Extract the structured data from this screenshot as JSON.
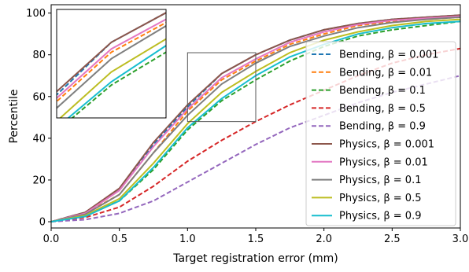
{
  "chart_data": {
    "type": "line",
    "xlabel": "Target registration error (mm)",
    "ylabel": "Percentile",
    "xlim": [
      0,
      3
    ],
    "ylim": [
      -3,
      104
    ],
    "xticks": [
      "0.0",
      "0.5",
      "1.0",
      "1.5",
      "2.0",
      "2.5",
      "3.0"
    ],
    "yticks": [
      "0",
      "20",
      "40",
      "60",
      "80",
      "100"
    ],
    "grid": false,
    "legend_position": "right",
    "inset": {
      "xlim": [
        1.0,
        1.5
      ],
      "ylim": [
        48,
        81
      ]
    },
    "x": [
      0,
      0.25,
      0.5,
      0.75,
      1.0,
      1.25,
      1.5,
      1.75,
      2.0,
      2.25,
      2.5,
      2.75,
      3.0
    ],
    "series": [
      {
        "name": "Bending, β = 0.001",
        "color": "#1f77b4",
        "dash": true,
        "values": [
          0,
          4.5,
          15,
          37,
          55,
          71,
          80,
          87,
          92,
          95,
          97,
          98,
          99
        ]
      },
      {
        "name": "Bending, β = 0.01",
        "color": "#ff7f0e",
        "dash": true,
        "values": [
          0,
          4,
          13,
          33,
          53,
          68,
          77,
          85,
          90,
          94,
          96,
          97,
          98
        ]
      },
      {
        "name": "Bending, β = 0.1",
        "color": "#2ca02c",
        "dash": true,
        "values": [
          0,
          3,
          10,
          25,
          44,
          58,
          68,
          77,
          84,
          89,
          92,
          94,
          96
        ]
      },
      {
        "name": "Bending, β = 0.5",
        "color": "#d62728",
        "dash": true,
        "values": [
          0,
          2,
          7,
          17,
          29,
          39,
          48,
          56,
          63,
          70,
          76,
          80,
          83
        ]
      },
      {
        "name": "Bending, β = 0.9",
        "color": "#9467bd",
        "dash": true,
        "values": [
          0,
          1,
          4,
          10,
          19,
          28,
          37,
          45,
          51,
          57,
          62,
          66,
          70
        ]
      },
      {
        "name": "Physics, β = 0.001",
        "color": "#8c564b",
        "dash": false,
        "values": [
          0,
          4.5,
          16,
          38,
          56,
          71,
          80,
          87,
          92,
          95,
          97,
          98,
          99
        ]
      },
      {
        "name": "Physics, β = 0.01",
        "color": "#e377c2",
        "dash": false,
        "values": [
          0,
          4,
          15,
          36,
          54,
          69,
          78,
          86,
          91,
          94.5,
          96.5,
          97.5,
          98.5
        ]
      },
      {
        "name": "Physics, β = 0.1",
        "color": "#7f7f7f",
        "dash": false,
        "values": [
          0,
          3.5,
          13,
          33,
          51,
          66,
          76,
          84,
          89,
          93,
          95.5,
          97,
          98
        ]
      },
      {
        "name": "Physics, β = 0.5",
        "color": "#bcbd22",
        "dash": false,
        "values": [
          0,
          3,
          11,
          28,
          47,
          62,
          72,
          81,
          87,
          91,
          94,
          96,
          97
        ]
      },
      {
        "name": "Physics, β = 0.9",
        "color": "#17becf",
        "dash": false,
        "values": [
          0,
          2.5,
          10,
          26,
          45,
          59,
          70,
          79,
          85,
          90,
          93,
          95,
          96
        ]
      }
    ]
  }
}
